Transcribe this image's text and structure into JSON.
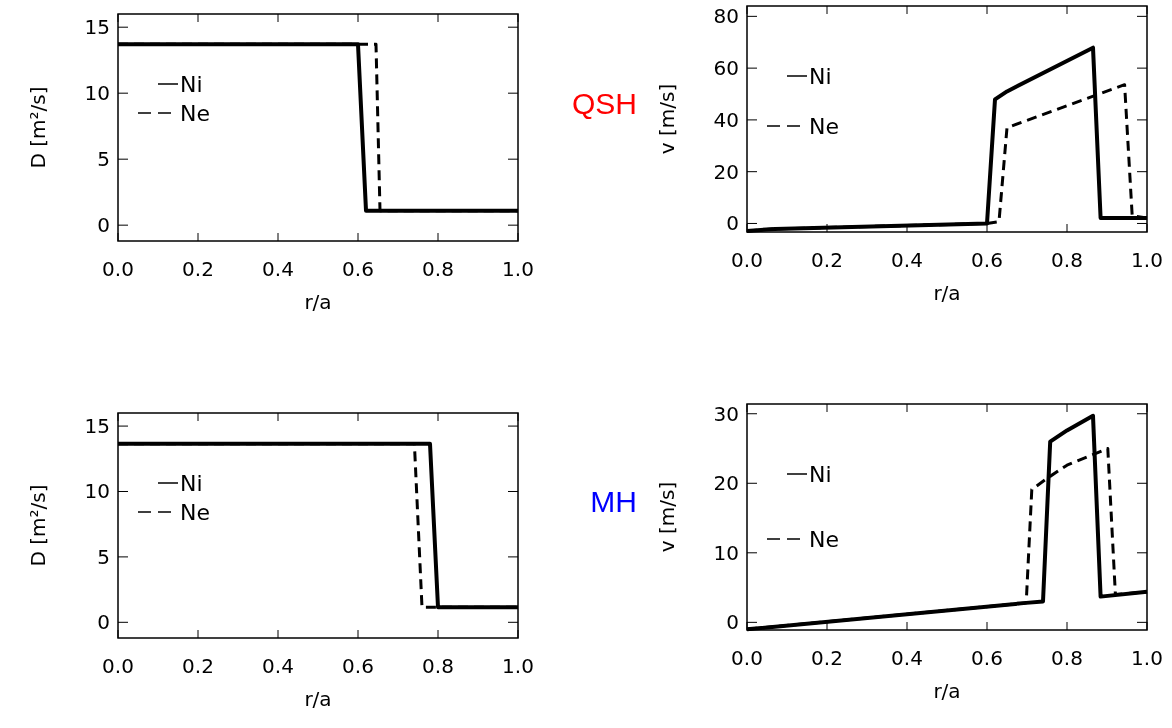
{
  "chart_data": [
    {
      "type": "line",
      "xlabel": "r/a",
      "ylabel": "D [m²/s]",
      "xlim": [
        0,
        1
      ],
      "ylim": [
        -1.2,
        16
      ],
      "xticks": [
        {
          "value": 0,
          "label": "0.0"
        },
        {
          "value": 0.2,
          "label": "0.2"
        },
        {
          "value": 0.4,
          "label": "0.4"
        },
        {
          "value": 0.6,
          "label": "0.6"
        },
        {
          "value": 0.8,
          "label": "0.8"
        },
        {
          "value": 1,
          "label": "1.0"
        }
      ],
      "yticks": [
        0,
        5,
        10,
        15
      ],
      "legend": "top left",
      "grid": false,
      "marker": "none",
      "series": [
        {
          "name": "Ni",
          "color": "#000000",
          "line_style": "solid",
          "x": [
            0,
            0.6,
            0.62,
            1
          ],
          "values": [
            13.7,
            13.7,
            1.1,
            1.1
          ]
        },
        {
          "name": "Ne",
          "color": "#000000",
          "line_style": "dashed",
          "x": [
            0,
            0.645,
            0.655,
            1
          ],
          "values": [
            13.7,
            13.7,
            1.1,
            1.1
          ]
        }
      ]
    },
    {
      "type": "line",
      "xlabel": "r/a",
      "ylabel": "v [m/s]",
      "annotations": [
        "QSH"
      ],
      "xlim": [
        0,
        1
      ],
      "ylim": [
        -3.3,
        84
      ],
      "xticks": [
        {
          "value": 0,
          "label": "0.0"
        },
        {
          "value": 0.2,
          "label": "0.2"
        },
        {
          "value": 0.4,
          "label": "0.4"
        },
        {
          "value": 0.6,
          "label": "0.6"
        },
        {
          "value": 0.8,
          "label": "0.8"
        },
        {
          "value": 1,
          "label": "1.0"
        }
      ],
      "yticks": [
        0,
        20,
        40,
        60,
        80
      ],
      "legend": "top left",
      "grid": false,
      "marker": "none",
      "series": [
        {
          "name": "Ni",
          "color": "#000000",
          "line_style": "solid",
          "x": [
            0,
            0.07,
            0.6,
            0.62,
            0.65,
            0.865,
            0.884,
            1
          ],
          "values": [
            -2.9,
            -2.1,
            0,
            47.9,
            51,
            67.9,
            2.1,
            2.1
          ]
        },
        {
          "name": "Ne",
          "color": "#000000",
          "line_style": "dashed",
          "x": [
            0,
            0.07,
            0.6,
            0.63,
            0.65,
            0.944,
            0.963,
            1
          ],
          "values": [
            -2.9,
            -2.1,
            0,
            0.7,
            37,
            53.6,
            2.9,
            2.1
          ]
        }
      ]
    },
    {
      "type": "line",
      "xlabel": "r/a",
      "ylabel": "D [m²/s]",
      "xlim": [
        0,
        1
      ],
      "ylim": [
        -1.2,
        16
      ],
      "xticks": [
        {
          "value": 0,
          "label": "0.0"
        },
        {
          "value": 0.2,
          "label": "0.2"
        },
        {
          "value": 0.4,
          "label": "0.4"
        },
        {
          "value": 0.6,
          "label": "0.6"
        },
        {
          "value": 0.8,
          "label": "0.8"
        },
        {
          "value": 1,
          "label": "1.0"
        }
      ],
      "yticks": [
        0,
        5,
        10,
        15
      ],
      "legend": "top left",
      "grid": false,
      "marker": "none",
      "series": [
        {
          "name": "Ni",
          "color": "#000000",
          "line_style": "solid",
          "x": [
            0,
            0.78,
            0.8,
            1
          ],
          "values": [
            13.65,
            13.65,
            1.15,
            1.15
          ]
        },
        {
          "name": "Ne",
          "color": "#000000",
          "line_style": "dashed",
          "x": [
            0,
            0.741,
            0.76,
            1
          ],
          "values": [
            13.65,
            13.65,
            1.15,
            1.15
          ]
        }
      ]
    },
    {
      "type": "line",
      "xlabel": "r/a",
      "ylabel": "v [m/s]",
      "annotations": [
        "MH"
      ],
      "xlim": [
        0,
        1
      ],
      "ylim": [
        -1.1,
        31.4
      ],
      "xticks": [
        {
          "value": 0,
          "label": "0.0"
        },
        {
          "value": 0.2,
          "label": "0.2"
        },
        {
          "value": 0.4,
          "label": "0.4"
        },
        {
          "value": 0.6,
          "label": "0.6"
        },
        {
          "value": 0.8,
          "label": "0.8"
        },
        {
          "value": 1,
          "label": "1.0"
        }
      ],
      "yticks": [
        0,
        10,
        20,
        30
      ],
      "legend": "top left",
      "grid": false,
      "marker": "none",
      "series": [
        {
          "name": "Ni",
          "color": "#000000",
          "line_style": "solid",
          "x": [
            0,
            0.698,
            0.74,
            0.758,
            0.8,
            0.865,
            0.884,
            1
          ],
          "values": [
            -1,
            2.8,
            3,
            26,
            27.6,
            29.7,
            3.7,
            4.4
          ]
        },
        {
          "name": "Ne",
          "color": "#000000",
          "line_style": "dashed",
          "x": [
            0,
            0.698,
            0.712,
            0.75,
            0.8,
            0.902,
            0.921,
            1
          ],
          "values": [
            -1,
            2.8,
            19.1,
            20.7,
            22.6,
            25,
            4,
            4.4
          ]
        }
      ]
    }
  ]
}
